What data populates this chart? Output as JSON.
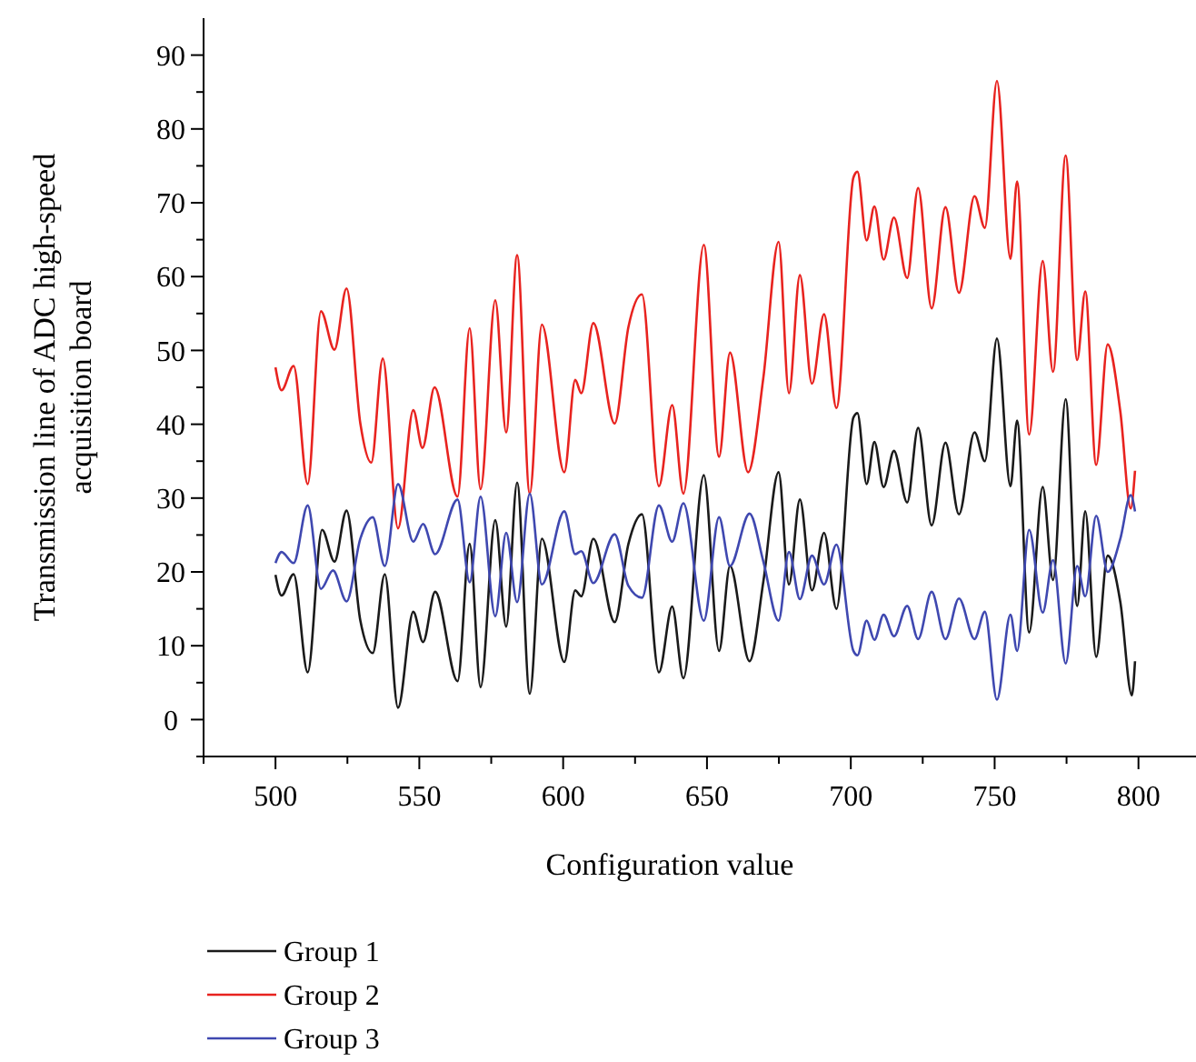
{
  "chart_data": {
    "type": "line",
    "xlabel": "Configuration value",
    "ylabel": "Transmission line of ADC high-speed acquisition board",
    "xlim": [
      475,
      820
    ],
    "ylim": [
      -5,
      95
    ],
    "xticks": [
      {
        "value": 475,
        "label": null
      },
      500,
      {
        "value": 525,
        "label": null
      },
      550,
      {
        "value": 575,
        "label": null
      },
      600,
      {
        "value": 625,
        "label": null
      },
      650,
      {
        "value": 675,
        "label": null
      },
      700,
      {
        "value": 725,
        "label": null
      },
      750,
      {
        "value": 775,
        "label": null
      },
      800
    ],
    "yticks": [
      {
        "value": -5,
        "label": null
      },
      0,
      {
        "value": 5,
        "label": null
      },
      10,
      {
        "value": 15,
        "label": null
      },
      20,
      {
        "value": 25,
        "label": null
      },
      30,
      {
        "value": 35,
        "label": null
      },
      40,
      {
        "value": 45,
        "label": null
      },
      50,
      {
        "value": 55,
        "label": null
      },
      60,
      {
        "value": 65,
        "label": null
      },
      70,
      {
        "value": 75,
        "label": null
      },
      80,
      {
        "value": 85,
        "label": null
      },
      90
    ],
    "grid": false,
    "legend": "bottom left",
    "marker": "none",
    "line_style": "solid",
    "series": [
      {
        "name": "Group 1",
        "color": "#1a1a1a",
        "x": [
          500,
          502.1,
          506.3,
          511.2,
          516.2,
          520.5,
          524.7,
          529.5,
          533.8,
          538,
          542.6,
          547.9,
          551.3,
          555.5,
          563.3,
          567.5,
          571.3,
          576.4,
          580.2,
          584,
          588.4,
          592.6,
          600.4,
          604.2,
          606.3,
          610.5,
          617.9,
          622.7,
          627.4,
          633.3,
          637.9,
          641.8,
          648.9,
          654.2,
          658,
          664.8,
          669.6,
          674.9,
          678.5,
          682.3,
          686.5,
          690.7,
          695,
          700.9,
          702.3,
          705.5,
          708.2,
          711.4,
          715,
          719.6,
          723.4,
          728.1,
          732.9,
          737.6,
          743,
          746.6,
          750.8,
          755.5,
          757.8,
          762,
          766.7,
          770.3,
          774.7,
          778.7,
          781.5,
          785.3,
          789.3,
          793.7,
          797.7,
          798.8
        ],
        "values": [
          19.6,
          16.8,
          19.7,
          6.4,
          25.7,
          21.4,
          28.3,
          13.4,
          9,
          19.7,
          1.6,
          14.6,
          10.5,
          17.3,
          5.2,
          23.8,
          4.4,
          27,
          12.6,
          32.1,
          3.5,
          24.5,
          7.8,
          17.5,
          16.7,
          24.5,
          13.2,
          23.8,
          27.8,
          6.4,
          15.3,
          5.6,
          33.1,
          9.3,
          20.8,
          7.9,
          18.7,
          33.5,
          18.3,
          29.8,
          17.5,
          25.3,
          15,
          40.9,
          41.5,
          31.9,
          37.6,
          31.5,
          36.4,
          29.4,
          39.5,
          26.3,
          37.5,
          27.8,
          38.9,
          35,
          51.6,
          31.6,
          40.5,
          11.8,
          31.5,
          18.9,
          43.4,
          15.4,
          28.2,
          8.5,
          22.2,
          15.9,
          3.3,
          7.9
        ]
      },
      {
        "name": "Group 2",
        "color": "#e8231f",
        "x": [
          500,
          502.1,
          506.3,
          511.2,
          515.8,
          520.5,
          524.7,
          529.5,
          533.3,
          537.3,
          542.6,
          547.9,
          551.1,
          555.3,
          563.3,
          567.5,
          571.3,
          576.4,
          580.2,
          584,
          588.4,
          592.6,
          600.4,
          604.2,
          606.3,
          610.5,
          617.9,
          622.7,
          627.4,
          633.3,
          637.9,
          641.8,
          648.9,
          654.2,
          658,
          664.3,
          669.6,
          674.9,
          678.5,
          682.3,
          686.5,
          690.7,
          695,
          700.9,
          702.3,
          705.5,
          708.2,
          711.4,
          715,
          719.6,
          723.4,
          728.1,
          732.9,
          737.6,
          743,
          746.6,
          750.8,
          755.5,
          757.8,
          762,
          766.7,
          770.3,
          774.7,
          778.7,
          781.5,
          785.3,
          789.3,
          793.7,
          797.3,
          798.8
        ],
        "values": [
          47.7,
          44.6,
          47.9,
          31.9,
          55.3,
          50.1,
          58.4,
          40.1,
          34.8,
          48.9,
          25.9,
          41.9,
          36.8,
          45,
          30.2,
          53,
          31.2,
          56.8,
          38.9,
          62.9,
          30.6,
          53.5,
          33.5,
          46,
          44.2,
          53.7,
          40.1,
          53.2,
          57.6,
          31.6,
          42.6,
          30.6,
          64.3,
          35.6,
          49.7,
          33.5,
          46.3,
          64.7,
          44.2,
          60.2,
          45.5,
          54.9,
          42.2,
          73.4,
          74.2,
          64.9,
          69.5,
          62.3,
          68,
          59.8,
          72,
          55.7,
          69.4,
          57.8,
          70.9,
          66.6,
          86.5,
          62.4,
          72.9,
          38.6,
          62.1,
          47.1,
          76.4,
          48.7,
          58,
          34.5,
          50.8,
          41.7,
          28.6,
          33.7
        ]
      },
      {
        "name": "Group 3",
        "color": "#3f48b0",
        "x": [
          500,
          502.1,
          506.3,
          511.2,
          515.8,
          520,
          524.7,
          529.5,
          533.8,
          538,
          542.6,
          547.9,
          551.3,
          555.5,
          563.3,
          567.5,
          571.3,
          576.4,
          580.2,
          584,
          588.4,
          592.6,
          600.4,
          604.2,
          606.3,
          610.5,
          617.9,
          622.7,
          627.4,
          633.3,
          637.9,
          641.8,
          648.9,
          654.2,
          658,
          664.8,
          669.6,
          674.9,
          678.5,
          682.3,
          686.5,
          690.7,
          695,
          700.9,
          702.3,
          705.5,
          708.2,
          711.4,
          715,
          719.6,
          723.4,
          728.1,
          732.9,
          737.6,
          743,
          746.6,
          750.8,
          755.5,
          757.8,
          762,
          766.7,
          770.3,
          774.7,
          778.7,
          781.5,
          785.3,
          789.3,
          793.7,
          797.3,
          798.8
        ],
        "values": [
          21.2,
          22.7,
          21.2,
          29,
          17.7,
          20.2,
          16,
          24.5,
          27.4,
          20.8,
          31.9,
          24.1,
          26.5,
          22.4,
          29.8,
          18.6,
          30.2,
          14,
          25.3,
          15.9,
          30.6,
          18.3,
          28.2,
          22.4,
          22.8,
          18.5,
          25.1,
          18.1,
          16.5,
          29,
          24.1,
          29.3,
          13.4,
          27.4,
          20.8,
          27.9,
          21.4,
          13.4,
          22.7,
          16.3,
          22.2,
          18.3,
          23.7,
          9.3,
          8.7,
          13.4,
          10.8,
          14.2,
          11.3,
          15.4,
          10.9,
          17.3,
          10.9,
          16.4,
          10.9,
          14.6,
          2.7,
          14.2,
          9.3,
          25.7,
          14.5,
          21.6,
          7.6,
          20.8,
          16.7,
          27.6,
          20,
          24.5,
          30.4,
          28.2
        ]
      }
    ]
  }
}
